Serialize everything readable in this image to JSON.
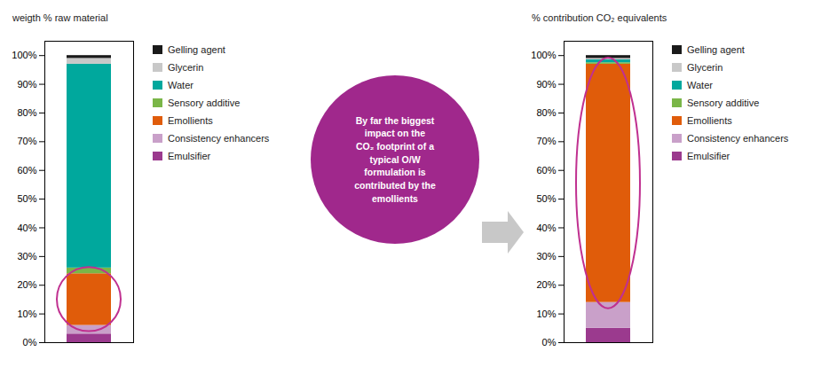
{
  "chart_data": [
    {
      "type": "bar",
      "title": "weigth % raw material",
      "categories": [
        null
      ],
      "series": [
        {
          "name": "Gelling agent",
          "color": "#1a1a1a",
          "values": [
            1.0
          ]
        },
        {
          "name": "Glycerin",
          "color": "#c8c8c8",
          "values": [
            2.0
          ]
        },
        {
          "name": "Water",
          "color": "#00a89d",
          "values": [
            71.0
          ]
        },
        {
          "name": "Sensory additive",
          "color": "#7ab648",
          "values": [
            2.0
          ]
        },
        {
          "name": "Emollients",
          "color": "#e05c0a",
          "values": [
            18.0
          ],
          "marker": "circle"
        },
        {
          "name": "Consistency enhancers",
          "color": "#c9a0c9",
          "values": [
            3.0
          ]
        },
        {
          "name": "Emulsifier",
          "color": "#9b3a8e",
          "values": [
            3.0
          ]
        }
      ],
      "stacked": true,
      "ylim": [
        0,
        105
      ],
      "yticks": [
        {
          "value": 0,
          "label": "0%"
        },
        {
          "value": 10,
          "label": "10%"
        },
        {
          "value": 20,
          "label": "20%"
        },
        {
          "value": 30,
          "label": "30%"
        },
        {
          "value": 40,
          "label": "40%"
        },
        {
          "value": 50,
          "label": "50%"
        },
        {
          "value": 60,
          "label": "60%"
        },
        {
          "value": 70,
          "label": "70%"
        },
        {
          "value": 80,
          "label": "80%"
        },
        {
          "value": 90,
          "label": "90%"
        },
        {
          "value": 100,
          "label": "100%"
        }
      ],
      "grid": false,
      "legend": "right",
      "tick_labels": "y"
    },
    {
      "type": "bar",
      "title": "% contribution CO₂ equivalents",
      "categories": [
        null
      ],
      "series": [
        {
          "name": "Gelling agent",
          "color": "#1a1a1a",
          "values": [
            1.0
          ]
        },
        {
          "name": "Glycerin",
          "color": "#c8c8c8",
          "values": [
            0.5
          ]
        },
        {
          "name": "Water",
          "color": "#00a89d",
          "values": [
            1.0
          ]
        },
        {
          "name": "Sensory additive",
          "color": "#7ab648",
          "values": [
            0.5
          ]
        },
        {
          "name": "Emollients",
          "color": "#e05c0a",
          "values": [
            83.0
          ],
          "marker": "circle"
        },
        {
          "name": "Consistency enhancers",
          "color": "#c9a0c9",
          "values": [
            9.0
          ]
        },
        {
          "name": "Emulsifier",
          "color": "#9b3a8e",
          "values": [
            5.0
          ]
        }
      ],
      "stacked": true,
      "ylim": [
        0,
        105
      ],
      "yticks": [
        {
          "value": 0,
          "label": "0%"
        },
        {
          "value": 10,
          "label": "10%"
        },
        {
          "value": 20,
          "label": "20%"
        },
        {
          "value": 30,
          "label": "30%"
        },
        {
          "value": 40,
          "label": "40%"
        },
        {
          "value": 50,
          "label": "50%"
        },
        {
          "value": 60,
          "label": "60%"
        },
        {
          "value": 70,
          "label": "70%"
        },
        {
          "value": 80,
          "label": "80%"
        },
        {
          "value": 90,
          "label": "90%"
        },
        {
          "value": 100,
          "label": "100%"
        }
      ],
      "grid": false,
      "legend": "right",
      "tick_labels": "y",
      "annotations": [
        {
          "text": "By far the biggest\nimpact on the\nCO₂ footprint of a\ntypical O/W\nformulation is\ncontributed by the\nemollients",
          "color": "#a0288c"
        }
      ]
    }
  ]
}
